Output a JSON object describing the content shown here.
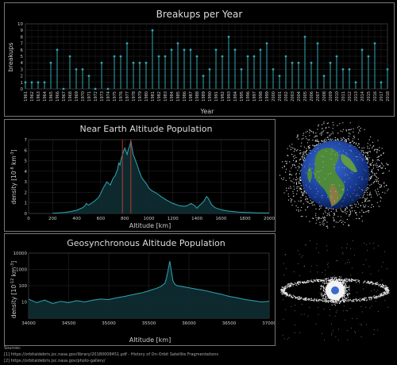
{
  "colors": {
    "accent": "#2fa7b2",
    "fill_dark": "#0e2e33",
    "grid": "#2a2a2a",
    "text": "#cccccc",
    "marker_red": "#c0392b"
  },
  "sources": {
    "heading": "Sources:",
    "line1": "[1] https://orbitaldebris.jsc.nasa.gov/library/20180008451.pdf  -  History of On-Orbit Satellite Fragmentations",
    "line2": "[2] https://orbitaldebris.jsc.nasa.gov/photo-gallery/"
  },
  "images": {
    "earth_globe": "earth-globe-icon",
    "geo_ring": "geo-ring-icon"
  },
  "chart_data": [
    {
      "type": "stem",
      "title": "Breakups per Year",
      "xlabel": "Year",
      "ylabel": "breakups",
      "ylim": [
        0,
        10
      ],
      "yticks": [
        0,
        1,
        2,
        3,
        4,
        5,
        6,
        7,
        8,
        9,
        10
      ],
      "grid": true,
      "categories": [
        "1961",
        "1962",
        "1963",
        "1964",
        "1965",
        "1966",
        "1967",
        "1968",
        "1969",
        "1970",
        "1971",
        "1972",
        "1973",
        "1974",
        "1975",
        "1976",
        "1977",
        "1978",
        "1979",
        "1980",
        "1981",
        "1982",
        "1983",
        "1984",
        "1985",
        "1986",
        "1987",
        "1988",
        "1989",
        "1990",
        "1991",
        "1992",
        "1993",
        "1994",
        "1995",
        "1996",
        "1997",
        "1998",
        "1999",
        "2000",
        "2001",
        "2002",
        "2003",
        "2004",
        "2005",
        "2006",
        "2007",
        "2008",
        "2009",
        "2010",
        "2011",
        "2012",
        "2013",
        "2014",
        "2015",
        "2016",
        "2017",
        "2018"
      ],
      "tick_labels": [
        "1961",
        "1962",
        "1963",
        "1964",
        "1965",
        "1966",
        "1967",
        "1968",
        "1969",
        "1970",
        "1971",
        "1972",
        "1973",
        "1974",
        "1975",
        "1976",
        "1977",
        "1978",
        "1979",
        "1980",
        "1981",
        "1982",
        "1983",
        "1984",
        "1985",
        "1986",
        "1987",
        "1988",
        "1989",
        "1990",
        "1991",
        "1992",
        "1993",
        "1994",
        "1995",
        "1996",
        "1997",
        "1998",
        "1999",
        "2000",
        "2001",
        "2002",
        "2003",
        "2004",
        "2005",
        "2006",
        "2007",
        "2008",
        "2009",
        "2010",
        "2011",
        "2012",
        "2013",
        "2014",
        "2015",
        "2016",
        "2017",
        "2018"
      ],
      "values": [
        1,
        1,
        1,
        1,
        4,
        6,
        0,
        5,
        3,
        3,
        2,
        0,
        4,
        0,
        5,
        5,
        7,
        4,
        4,
        4,
        9,
        5,
        5,
        6,
        7,
        6,
        6,
        5,
        2,
        3,
        6,
        5,
        8,
        6,
        3,
        5,
        5,
        6,
        7,
        3,
        2,
        5,
        4,
        4,
        8,
        4,
        7,
        2,
        4,
        5,
        3,
        3,
        1,
        6,
        5,
        7,
        1,
        3
      ]
    },
    {
      "type": "area",
      "title": "Near Earth Altitude Population",
      "xlabel": "Altitude [km]",
      "ylabel": "density [10",
      "ylabel_exp": "-8",
      "ylabel_unit": "km",
      "ylabel_unit_exp": "-3",
      "ylabel_close": "]",
      "xlim": [
        0,
        2000
      ],
      "ylim": [
        0,
        7
      ],
      "xticks": [
        0,
        200,
        400,
        600,
        800,
        1000,
        1200,
        1400,
        1600,
        1800,
        2000
      ],
      "yticks": [
        0,
        1,
        2,
        3,
        4,
        5,
        6,
        7
      ],
      "grid": true,
      "markers": [
        780,
        850
      ],
      "x": [
        200,
        250,
        300,
        350,
        400,
        430,
        450,
        470,
        480,
        490,
        500,
        520,
        550,
        580,
        600,
        620,
        650,
        680,
        700,
        720,
        740,
        750,
        760,
        770,
        780,
        790,
        800,
        810,
        820,
        830,
        840,
        850,
        860,
        870,
        880,
        900,
        920,
        940,
        960,
        980,
        1000,
        1020,
        1050,
        1080,
        1100,
        1150,
        1200,
        1250,
        1280,
        1300,
        1320,
        1350,
        1380,
        1400,
        1420,
        1440,
        1460,
        1470,
        1480,
        1490,
        1500,
        1520,
        1550,
        1600,
        1650,
        1700,
        1750,
        1800,
        1850,
        1900,
        1950,
        2000
      ],
      "values": [
        0.02,
        0.05,
        0.1,
        0.18,
        0.3,
        0.45,
        0.55,
        0.75,
        0.95,
        0.85,
        0.8,
        0.95,
        1.2,
        1.5,
        1.9,
        2.4,
        3.0,
        2.7,
        3.3,
        3.6,
        4.2,
        4.8,
        4.6,
        5.2,
        5.6,
        5.9,
        6.2,
        5.9,
        5.6,
        6.1,
        6.4,
        6.9,
        6.2,
        5.6,
        5.3,
        4.7,
        4.0,
        3.4,
        3.1,
        2.8,
        2.4,
        2.2,
        2.0,
        1.8,
        1.6,
        1.25,
        0.95,
        0.75,
        0.7,
        0.7,
        0.75,
        0.95,
        0.75,
        0.5,
        0.75,
        0.95,
        1.2,
        1.45,
        1.6,
        1.5,
        1.3,
        0.85,
        0.55,
        0.35,
        0.25,
        0.18,
        0.12,
        0.1,
        0.08,
        0.06,
        0.05,
        0.04
      ]
    },
    {
      "type": "area",
      "title": "Geosynchronous Altitude Population",
      "xlabel": "Altitude [km]",
      "ylabel": "density [10",
      "ylabel_exp": "-12",
      "ylabel_unit": "km",
      "ylabel_unit_exp": "-3",
      "ylabel_close": "]",
      "xlim": [
        34000,
        37000
      ],
      "yscale": "log",
      "ylim": [
        1,
        10000
      ],
      "xticks": [
        34000,
        34500,
        35000,
        35500,
        36000,
        36500,
        37000
      ],
      "yticks": [
        10,
        100,
        1000,
        10000
      ],
      "grid": true,
      "x": [
        34000,
        34100,
        34200,
        34300,
        34400,
        34500,
        34600,
        34700,
        34800,
        34900,
        35000,
        35100,
        35200,
        35300,
        35400,
        35500,
        35600,
        35650,
        35700,
        35720,
        35740,
        35760,
        35780,
        35800,
        35820,
        35850,
        35900,
        36000,
        36100,
        36200,
        36300,
        36400,
        36500,
        36600,
        36700,
        36800,
        36900,
        37000
      ],
      "values": [
        15,
        9,
        13,
        8,
        11,
        9,
        12,
        10,
        13,
        15,
        14,
        18,
        22,
        28,
        35,
        48,
        70,
        90,
        140,
        300,
        900,
        3200,
        800,
        200,
        130,
        100,
        90,
        75,
        60,
        50,
        38,
        30,
        22,
        18,
        14,
        12,
        10,
        11
      ]
    }
  ]
}
